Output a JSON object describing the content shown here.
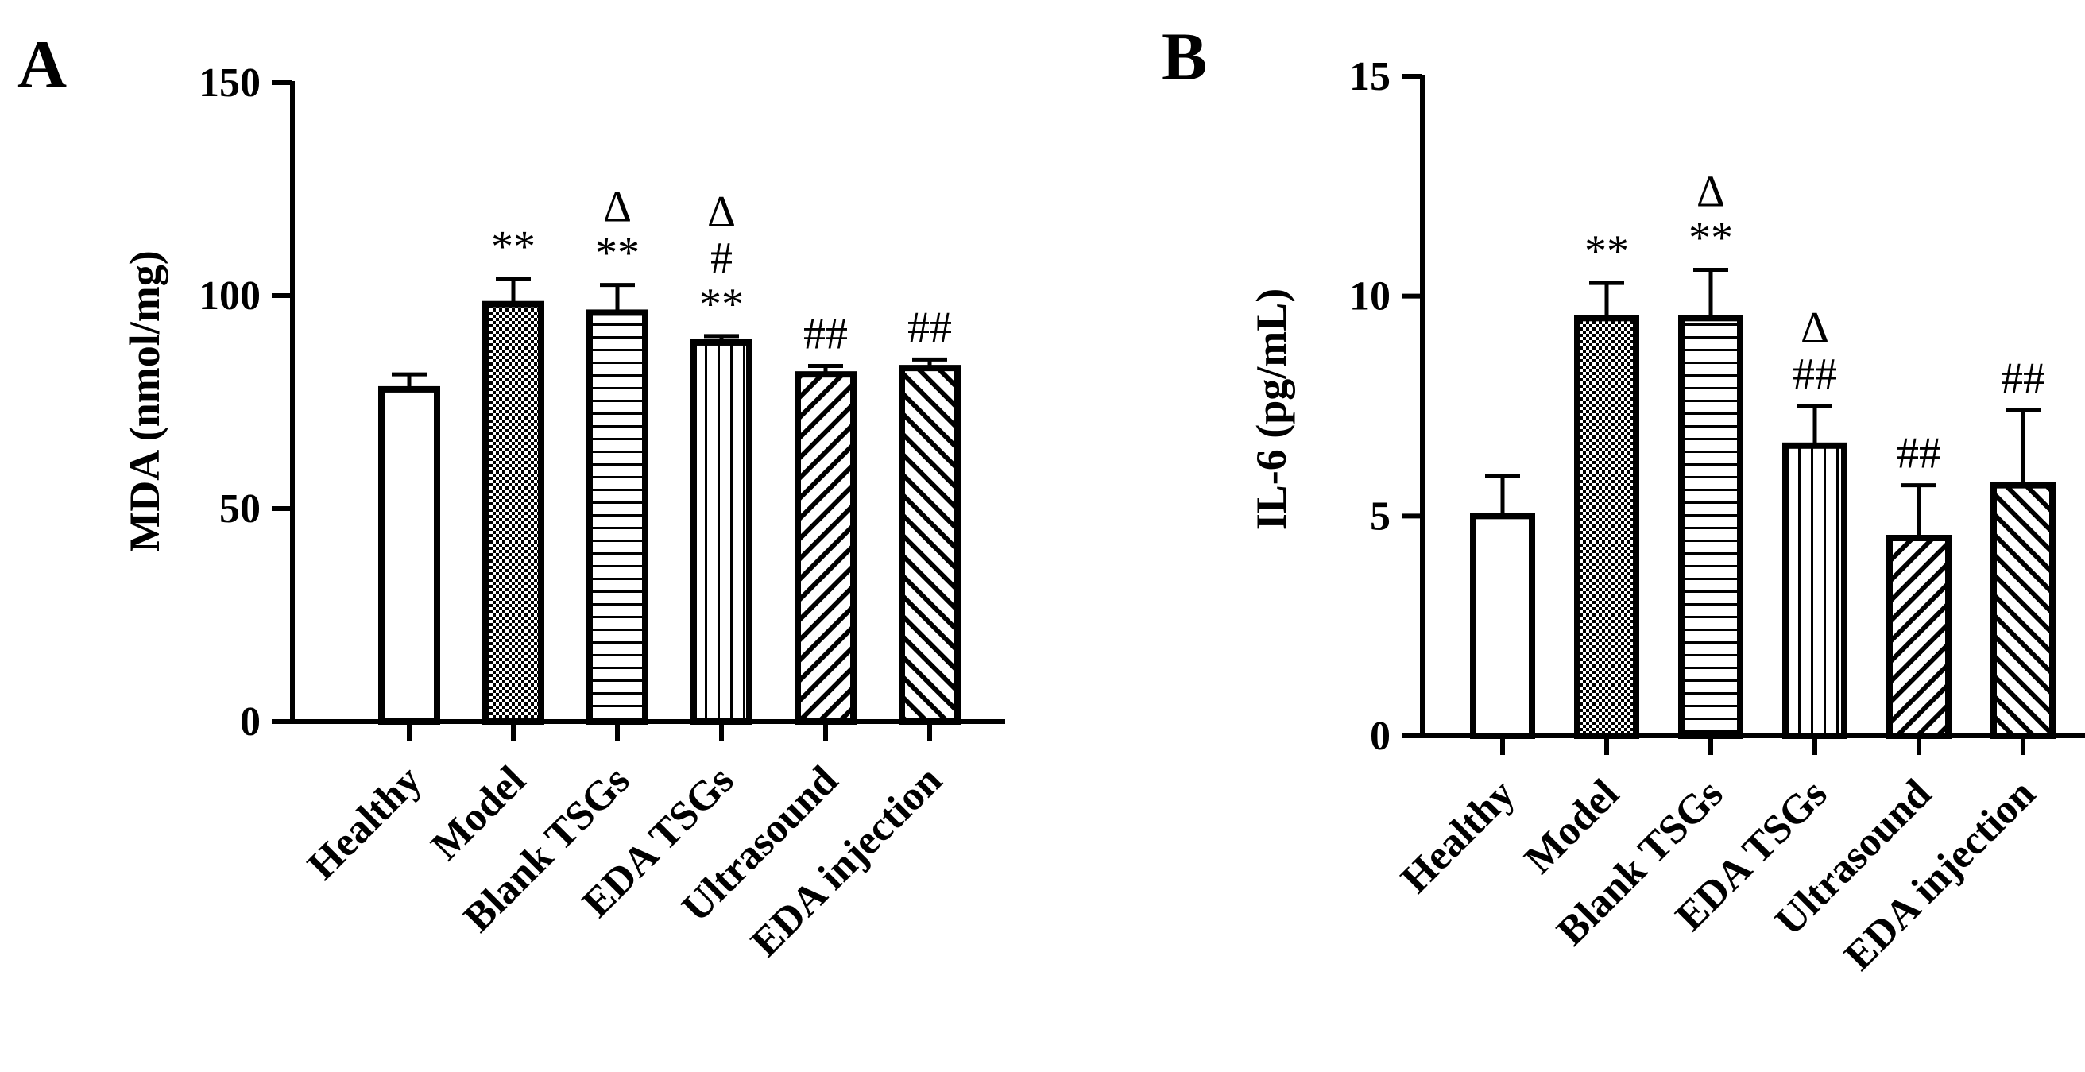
{
  "chart_data": [
    {
      "panel": "A",
      "type": "bar",
      "ylabel": "MDA (nmol/mg)",
      "ylim": [
        0,
        150
      ],
      "yticks": [
        0,
        50,
        100,
        150
      ],
      "categories": [
        "Healthy",
        "Model",
        "Blank TSGs",
        "EDA TSGs",
        "Ultrasound",
        "EDA injection"
      ],
      "values": [
        78,
        98,
        96,
        89,
        81.5,
        83
      ],
      "errors": [
        3.5,
        6,
        6.5,
        1.5,
        2,
        2
      ],
      "patterns": [
        "none",
        "checker",
        "hlines",
        "vlines",
        "diag-up",
        "diag-down"
      ],
      "annotations": [
        [],
        [
          "**"
        ],
        [
          "Δ",
          "**"
        ],
        [
          "Δ",
          "#",
          "**"
        ],
        [
          "##"
        ],
        [
          "##"
        ]
      ]
    },
    {
      "panel": "B",
      "type": "bar",
      "ylabel": "IL-6 (pg/mL)",
      "ylim": [
        0,
        15
      ],
      "yticks": [
        0,
        5,
        10,
        15
      ],
      "categories": [
        "Healthy",
        "Model",
        "Blank TSGs",
        "EDA TSGs",
        "Ultrasound",
        "EDA injection"
      ],
      "values": [
        5,
        9.5,
        9.5,
        6.6,
        4.5,
        5.7
      ],
      "errors": [
        0.9,
        0.8,
        1.1,
        0.9,
        1.2,
        1.7
      ],
      "patterns": [
        "none",
        "checker",
        "hlines",
        "vlines",
        "diag-up",
        "diag-down"
      ],
      "annotations": [
        [],
        [
          "**"
        ],
        [
          "Δ",
          "**"
        ],
        [
          "Δ",
          "##"
        ],
        [
          "##"
        ],
        [
          "##"
        ]
      ]
    }
  ]
}
